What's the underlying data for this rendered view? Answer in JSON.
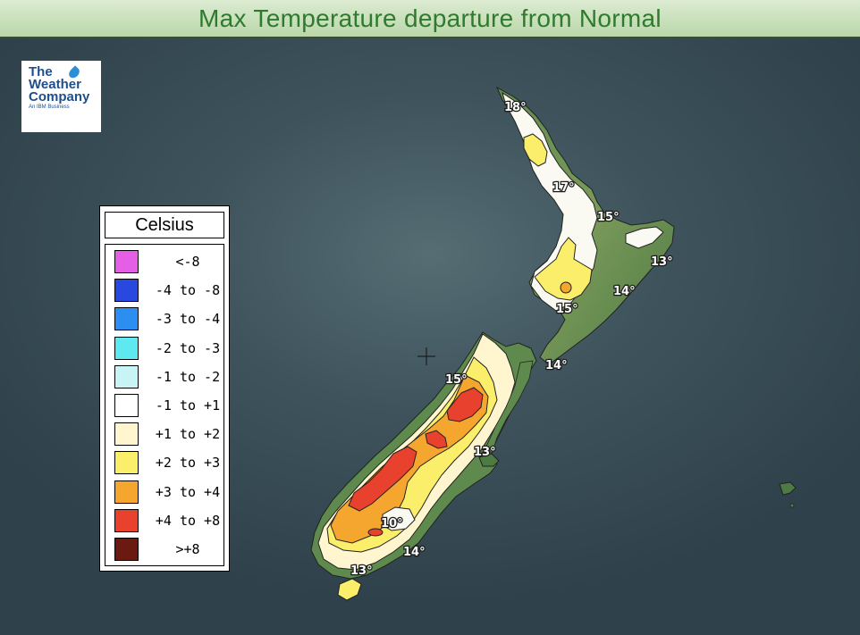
{
  "title": "Max Temperature departure from Normal",
  "logo": {
    "line1": "The",
    "line2": "Weather",
    "line3": "Company",
    "line4": "An IBM Business"
  },
  "legend": {
    "title": "Celsius",
    "items": [
      {
        "label": "<-8",
        "color": "#e55fe6"
      },
      {
        "label": "-4 to -8",
        "color": "#2848e0"
      },
      {
        "label": "-3 to -4",
        "color": "#2b8ef0"
      },
      {
        "label": "-2 to -3",
        "color": "#5ee8f0"
      },
      {
        "label": "-1 to -2",
        "color": "#c8f4f6"
      },
      {
        "label": "-1 to +1",
        "color": "#ffffff"
      },
      {
        "label": "+1 to +2",
        "color": "#fff6cf"
      },
      {
        "label": "+2 to +3",
        "color": "#fbee6a"
      },
      {
        "label": "+3 to +4",
        "color": "#f4a62e"
      },
      {
        "label": "+4 to +8",
        "color": "#e8412e"
      },
      {
        "label": ">+8",
        "color": "#6a1a10"
      }
    ]
  },
  "map": {
    "labels": [
      {
        "text": "18°",
        "value": 18
      },
      {
        "text": "17°",
        "value": 17
      },
      {
        "text": "15°",
        "value": 15
      },
      {
        "text": "13°",
        "value": 13
      },
      {
        "text": "14°",
        "value": 14
      },
      {
        "text": "15°",
        "value": 15
      },
      {
        "text": "14°",
        "value": 14
      },
      {
        "text": "15°",
        "value": 15
      },
      {
        "text": "13°",
        "value": 13
      },
      {
        "text": "10°",
        "value": 10
      },
      {
        "text": "14°",
        "value": 14
      },
      {
        "text": "13°",
        "value": 13
      }
    ]
  }
}
